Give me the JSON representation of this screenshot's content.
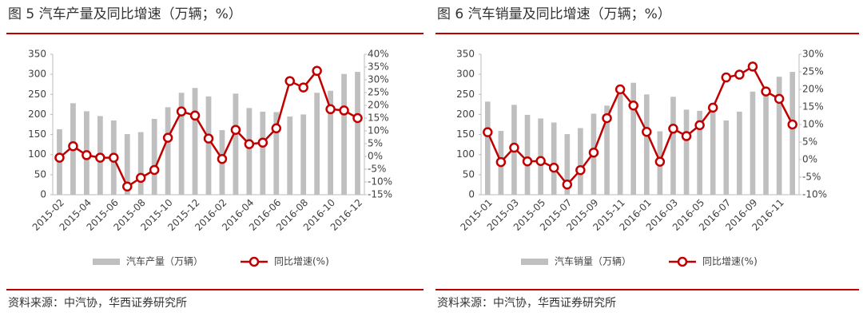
{
  "chart_data": [
    {
      "type": "bar-line",
      "title": "图 5 汽车产量及同比增速（万辆；%）",
      "note": "资料来源：中汽协，华西证券研究所",
      "categories": [
        "2015-02",
        null,
        "2015-04",
        null,
        "2015-06",
        null,
        "2015-08",
        null,
        "2015-10",
        null,
        "2015-12",
        null,
        "2016-02",
        null,
        "2016-04",
        null,
        "2016-06",
        null,
        "2016-08",
        null,
        "2016-10",
        null,
        "2016-12"
      ],
      "series": [
        {
          "name": "汽车产量（万辆）",
          "type": "bar",
          "axis": "y",
          "color": "#bfbfbf",
          "values": [
            163,
            228,
            208,
            196,
            185,
            151,
            156,
            189,
            218,
            254,
            266,
            245,
            161,
            252,
            216,
            207,
            206,
            195,
            200,
            254,
            259,
            301,
            306
          ]
        },
        {
          "name": "同比增速(%)",
          "type": "line",
          "axis": "y2",
          "color": "#c00000",
          "values": [
            -0.5,
            4,
            0.5,
            -0.5,
            -0.5,
            -11.8,
            -8.4,
            -5.3,
            7.3,
            17.6,
            16,
            7,
            -1,
            10.4,
            4.8,
            5.4,
            11,
            29.5,
            27,
            33.5,
            18.5,
            18,
            15
          ]
        }
      ],
      "ylim": [
        0,
        350
      ],
      "yticks": [
        0,
        50,
        100,
        150,
        200,
        250,
        300,
        350
      ],
      "y2lim": [
        -15,
        40
      ],
      "y2ticks": [
        {
          "value": -15,
          "label": "-15%"
        },
        {
          "value": -10,
          "label": "-10%"
        },
        {
          "value": -5,
          "label": "-5%"
        },
        {
          "value": 0,
          "label": "0%"
        },
        {
          "value": 5,
          "label": "5%"
        },
        {
          "value": 10,
          "label": "10%"
        },
        {
          "value": 15,
          "label": "15%"
        },
        {
          "value": 20,
          "label": "20%"
        },
        {
          "value": 25,
          "label": "25%"
        },
        {
          "value": 30,
          "label": "30%"
        },
        {
          "value": 35,
          "label": "35%"
        },
        {
          "value": 40,
          "label": "40%"
        }
      ]
    },
    {
      "type": "bar-line",
      "title": "图 6 汽车销量及同比增速（万辆；%）",
      "note": "资料来源：中汽协，华西证券研究所",
      "categories": [
        "2015-01",
        null,
        "2015-03",
        null,
        "2015-05",
        null,
        "2015-07",
        null,
        "2015-09",
        null,
        "2015-11",
        null,
        "2016-01",
        null,
        "2016-03",
        null,
        "2016-05",
        null,
        "2016-07",
        null,
        "2016-09",
        null,
        "2016-11",
        null
      ],
      "series": [
        {
          "name": "汽车销量（万辆）",
          "type": "bar",
          "axis": "y",
          "color": "#bfbfbf",
          "values": [
            232,
            159,
            224,
            199,
            190,
            180,
            151,
            166,
            202,
            222,
            250,
            279,
            250,
            158,
            244,
            212,
            209,
            206,
            185,
            207,
            257,
            262,
            294,
            306
          ]
        },
        {
          "name": "同比增速(%)",
          "type": "line",
          "axis": "y2",
          "color": "#c00000",
          "values": [
            7.8,
            -0.7,
            3.4,
            -0.5,
            -0.4,
            -2.3,
            -7.1,
            -3,
            2,
            11.8,
            20,
            15.4,
            7.9,
            -0.6,
            8.8,
            6.7,
            9.8,
            14.8,
            23.4,
            24.2,
            26.5,
            19.4,
            17.3,
            10
          ]
        }
      ],
      "ylim": [
        0,
        350
      ],
      "yticks": [
        0,
        50,
        100,
        150,
        200,
        250,
        300,
        350
      ],
      "y2lim": [
        -10,
        30
      ],
      "y2ticks": [
        {
          "value": -10,
          "label": "-10%"
        },
        {
          "value": -5,
          "label": "-5%"
        },
        {
          "value": 0,
          "label": "0%"
        },
        {
          "value": 5,
          "label": "5%"
        },
        {
          "value": 10,
          "label": "10%"
        },
        {
          "value": 15,
          "label": "15%"
        },
        {
          "value": 20,
          "label": "20%"
        },
        {
          "value": 25,
          "label": "25%"
        },
        {
          "value": 30,
          "label": "30%"
        }
      ]
    }
  ]
}
